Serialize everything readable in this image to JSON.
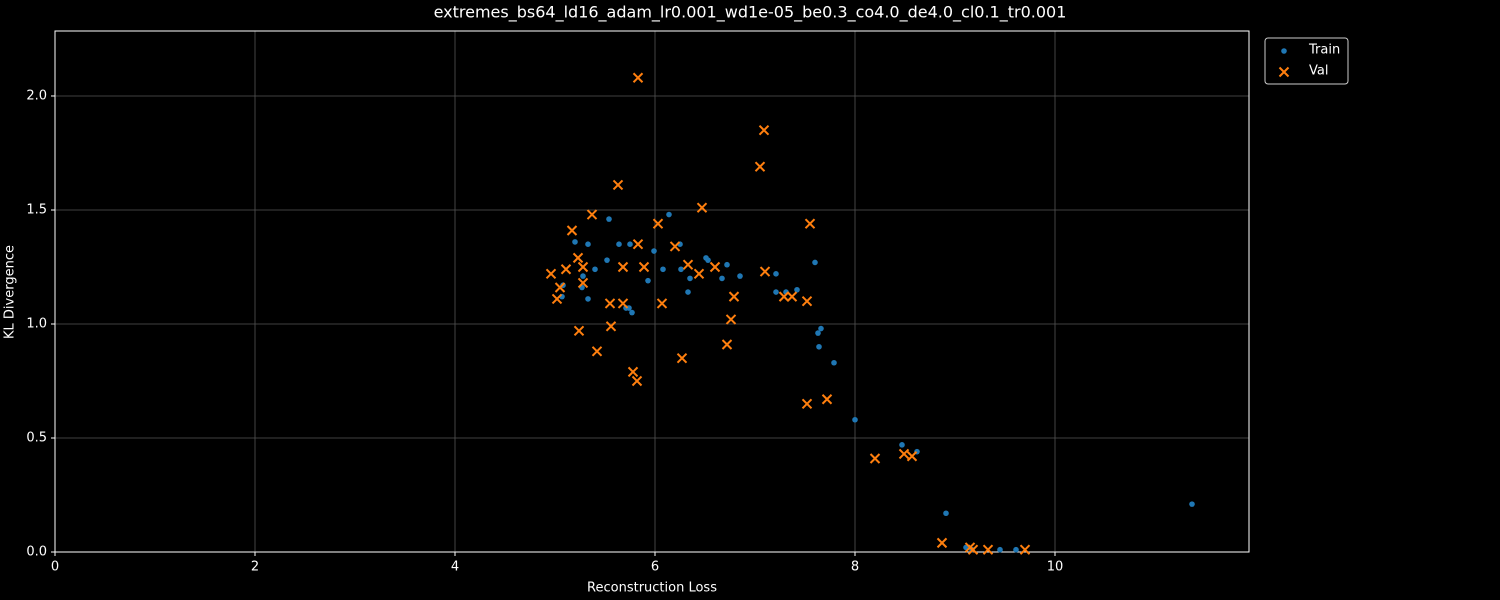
{
  "chart_data": {
    "type": "scatter",
    "title": "extremes_bs64_ld16_adam_lr0.001_wd1e-05_be0.3_co4.0_de4.0_cl0.1_tr0.001",
    "xlabel": "Reconstruction Loss",
    "ylabel": "KL Divergence",
    "xlim": [
      0,
      11.94
    ],
    "ylim": [
      0,
      2.285
    ],
    "xticks": [
      0,
      2,
      4,
      6,
      8,
      10
    ],
    "yticks": [
      {
        "value": 0,
        "label": "0.0"
      },
      0.5,
      {
        "value": 1,
        "label": "1.0"
      },
      1.5,
      {
        "value": 2,
        "label": "2.0"
      }
    ],
    "grid": true,
    "legend": "outside",
    "series": [
      {
        "name": "Train",
        "color": "#1f77b4",
        "marker": "dot",
        "x": [
          5.2,
          5.08,
          5.07,
          5.33,
          5.28,
          5.27,
          5.33,
          5.4,
          5.54,
          5.52,
          5.64,
          5.75,
          5.71,
          5.74,
          5.77,
          5.93,
          5.99,
          6.08,
          6.14,
          6.25,
          6.26,
          6.35,
          6.33,
          6.51,
          6.53,
          6.67,
          6.72,
          6.85,
          7.21,
          7.21,
          7.31,
          7.42,
          7.6,
          7.66,
          7.63,
          7.64,
          7.79,
          8.0,
          8.47,
          8.62,
          8.91,
          9.11,
          9.17,
          9.45,
          9.61,
          11.37
        ],
        "y": [
          1.36,
          1.17,
          1.12,
          1.35,
          1.21,
          1.16,
          1.11,
          1.24,
          1.46,
          1.28,
          1.35,
          1.35,
          1.07,
          1.07,
          1.05,
          1.19,
          1.32,
          1.24,
          1.48,
          1.35,
          1.24,
          1.2,
          1.14,
          1.29,
          1.28,
          1.2,
          1.26,
          1.21,
          1.22,
          1.14,
          1.14,
          1.15,
          1.27,
          0.98,
          0.96,
          0.9,
          0.83,
          0.58,
          0.47,
          0.44,
          0.17,
          0.02,
          0.01,
          0.01,
          0.01,
          0.21
        ]
      },
      {
        "name": "Val",
        "color": "#ff7f0e",
        "marker": "x",
        "x": [
          4.96,
          5.11,
          5.05,
          5.02,
          5.17,
          5.23,
          5.28,
          5.28,
          5.24,
          5.37,
          5.42,
          5.55,
          5.56,
          5.63,
          5.68,
          5.68,
          5.78,
          5.82,
          5.83,
          5.83,
          5.89,
          6.03,
          6.07,
          6.2,
          6.27,
          6.33,
          6.44,
          6.47,
          6.6,
          6.72,
          6.76,
          6.79,
          7.05,
          7.09,
          7.1,
          7.29,
          7.37,
          7.52,
          7.52,
          7.55,
          7.72,
          8.2,
          8.49,
          8.57,
          8.87,
          9.15,
          9.18,
          9.33,
          9.7
        ],
        "y": [
          1.22,
          1.24,
          1.16,
          1.11,
          1.41,
          1.29,
          1.25,
          1.18,
          0.97,
          1.48,
          0.88,
          1.09,
          0.99,
          1.61,
          1.25,
          1.09,
          0.79,
          0.75,
          2.08,
          1.35,
          1.25,
          1.44,
          1.09,
          1.34,
          0.85,
          1.26,
          1.22,
          1.51,
          1.25,
          0.91,
          1.02,
          1.12,
          1.69,
          1.85,
          1.23,
          1.12,
          1.12,
          1.1,
          0.65,
          1.44,
          0.67,
          0.41,
          0.43,
          0.42,
          0.04,
          0.02,
          0.01,
          0.01,
          0.01
        ]
      }
    ]
  }
}
